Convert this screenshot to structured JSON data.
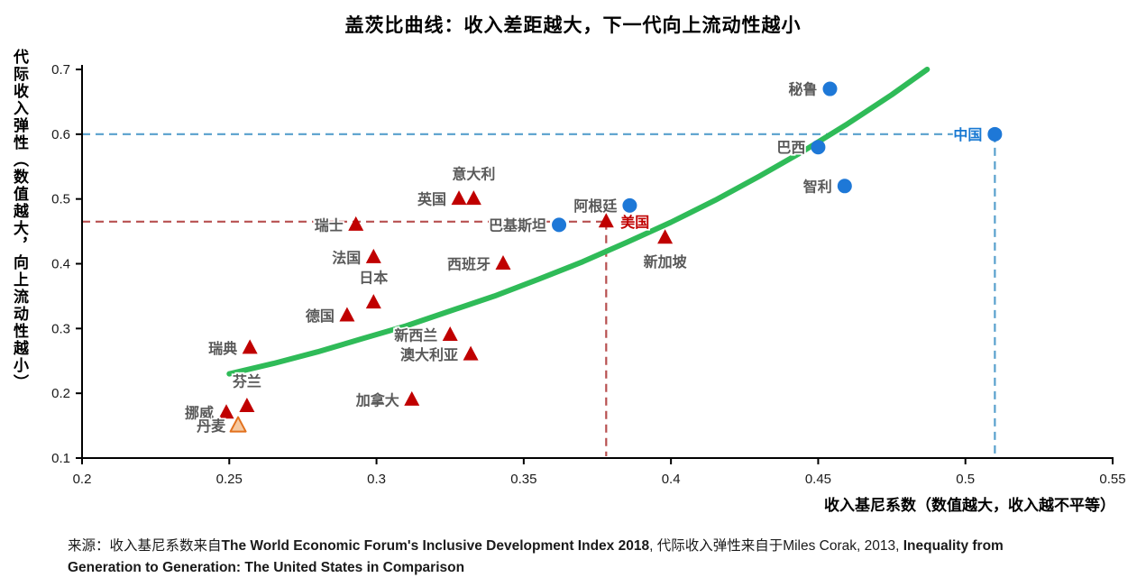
{
  "title": "盖茨比曲线：收入差距越大，下一代向上流动性越小",
  "chart_data": {
    "type": "scatter",
    "x_axis": {
      "label": "收入基尼系数（数值越大，收入越不平等）",
      "min": 0.2,
      "max": 0.55,
      "tick_values": [
        0.2,
        0.25,
        0.3,
        0.35,
        0.4,
        0.45,
        0.5,
        0.55
      ],
      "tick_labels": [
        "0.2",
        "0.25",
        "0.3",
        "0.35",
        "0.4",
        "0.45",
        "0.5",
        "0.55"
      ]
    },
    "y_axis": {
      "label": "代际收入弹性（数值越大，向上流动性越小）",
      "min": 0.1,
      "max": 0.7,
      "tick_values": [
        0.1,
        0.2,
        0.3,
        0.4,
        0.5,
        0.6,
        0.7
      ],
      "tick_labels": [
        "0.1",
        "0.2",
        "0.3",
        "0.4",
        "0.5",
        "0.6",
        "0.7"
      ]
    },
    "grid": false,
    "legend": "none",
    "series": [
      {
        "name": "blue-circle-countries",
        "marker": "circle",
        "color": "#1e78d7",
        "points": [
          {
            "id": "peru",
            "label": "秘鲁",
            "x": 0.454,
            "y": 0.67,
            "side": "left"
          },
          {
            "id": "china",
            "label": "中国",
            "x": 0.51,
            "y": 0.6,
            "side": "left",
            "label_color": "#1778d2"
          },
          {
            "id": "brazil",
            "label": "巴西",
            "x": 0.45,
            "y": 0.58,
            "side": "left"
          },
          {
            "id": "chile",
            "label": "智利",
            "x": 0.459,
            "y": 0.52,
            "side": "left"
          },
          {
            "id": "argentina",
            "label": "阿根廷",
            "x": 0.386,
            "y": 0.49,
            "side": "left"
          },
          {
            "id": "pakistan",
            "label": "巴基斯坦",
            "x": 0.362,
            "y": 0.46,
            "side": "left"
          }
        ]
      },
      {
        "name": "red-triangle-countries",
        "marker": "triangle",
        "color": "#c00000",
        "points": [
          {
            "id": "italy",
            "label": "意大利",
            "x": 0.333,
            "y": 0.5,
            "side": "above"
          },
          {
            "id": "uk",
            "label": "英国",
            "x": 0.328,
            "y": 0.5,
            "side": "left"
          },
          {
            "id": "usa",
            "label": "美国",
            "x": 0.378,
            "y": 0.465,
            "side": "right",
            "label_color": "#c00000"
          },
          {
            "id": "switzerland",
            "label": "瑞士",
            "x": 0.293,
            "y": 0.46,
            "side": "left"
          },
          {
            "id": "singapore",
            "label": "新加坡",
            "x": 0.398,
            "y": 0.44,
            "side": "below"
          },
          {
            "id": "france",
            "label": "法国",
            "x": 0.299,
            "y": 0.41,
            "side": "left"
          },
          {
            "id": "spain",
            "label": "西班牙",
            "x": 0.343,
            "y": 0.4,
            "side": "left"
          },
          {
            "id": "japan",
            "label": "日本",
            "x": 0.299,
            "y": 0.34,
            "side": "above"
          },
          {
            "id": "germany",
            "label": "德国",
            "x": 0.29,
            "y": 0.32,
            "side": "left"
          },
          {
            "id": "new-zealand",
            "label": "新西兰",
            "x": 0.325,
            "y": 0.29,
            "side": "left"
          },
          {
            "id": "sweden",
            "label": "瑞典",
            "x": 0.257,
            "y": 0.27,
            "side": "left"
          },
          {
            "id": "australia",
            "label": "澳大利亚",
            "x": 0.332,
            "y": 0.26,
            "side": "left"
          },
          {
            "id": "canada",
            "label": "加拿大",
            "x": 0.312,
            "y": 0.19,
            "side": "left"
          },
          {
            "id": "finland",
            "label": "芬兰",
            "x": 0.256,
            "y": 0.18,
            "side": "above"
          },
          {
            "id": "norway",
            "label": "挪威",
            "x": 0.249,
            "y": 0.17,
            "side": "left"
          },
          {
            "id": "denmark",
            "label": "丹麦",
            "x": 0.253,
            "y": 0.15,
            "side": "left",
            "fill": "#f6c9a0",
            "stroke": "#e2711d"
          }
        ]
      }
    ],
    "trend_curve": {
      "color": "#2fbb58",
      "points": [
        [
          0.25,
          0.23
        ],
        [
          0.265,
          0.246
        ],
        [
          0.28,
          0.264
        ],
        [
          0.295,
          0.284
        ],
        [
          0.31,
          0.304
        ],
        [
          0.325,
          0.327
        ],
        [
          0.34,
          0.35
        ],
        [
          0.355,
          0.376
        ],
        [
          0.37,
          0.403
        ],
        [
          0.385,
          0.433
        ],
        [
          0.4,
          0.464
        ],
        [
          0.415,
          0.498
        ],
        [
          0.43,
          0.535
        ],
        [
          0.445,
          0.574
        ],
        [
          0.46,
          0.616
        ],
        [
          0.475,
          0.661
        ],
        [
          0.487,
          0.7
        ]
      ]
    },
    "reference_lines": [
      {
        "id": "china-reference",
        "color": "#58a0cd",
        "x": 0.51,
        "y": 0.6
      },
      {
        "id": "usa-reference",
        "color": "#b85050",
        "x": 0.378,
        "y": 0.465
      }
    ]
  },
  "marker_label_style": {
    "color": "#595959"
  },
  "source": {
    "segments": [
      {
        "text": "来源：收入基尼系数来自",
        "bold": false
      },
      {
        "text": "The World Economic Forum's Inclusive Development Index 2018",
        "bold": true
      },
      {
        "text": ", 代际收入弹性来自于Miles Corak, 2013, ",
        "bold": false
      },
      {
        "text": "Inequality from Generation to Generation:  The United States in Comparison",
        "bold": true
      }
    ]
  }
}
